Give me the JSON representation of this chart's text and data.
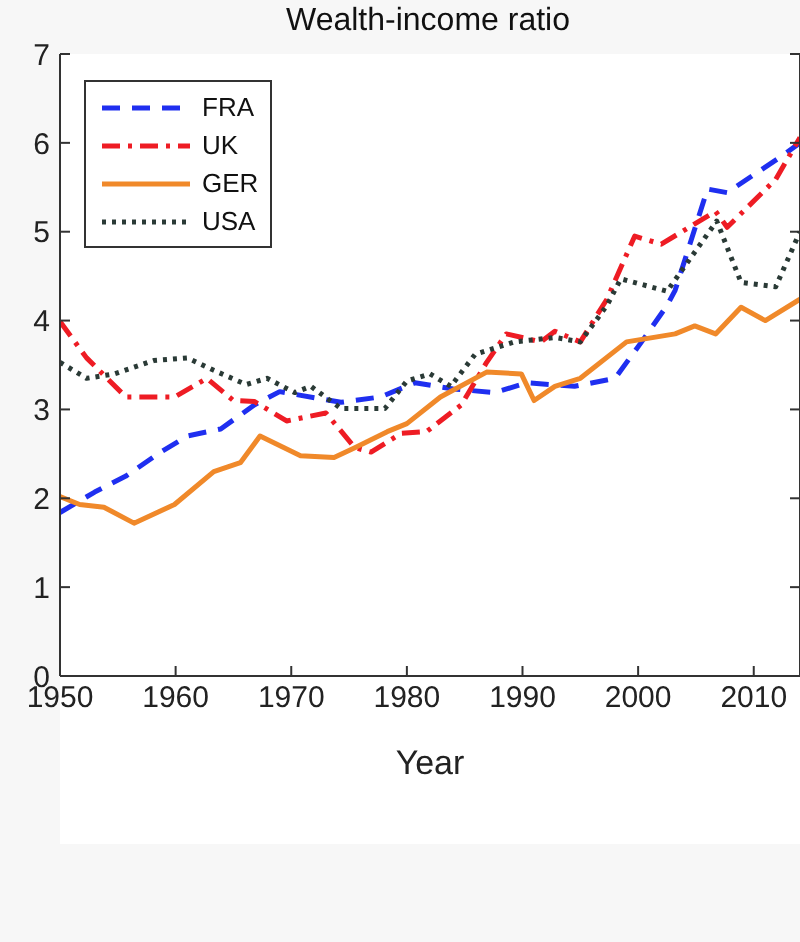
{
  "chart_data": {
    "type": "line",
    "title": "Wealth-income ratio",
    "xlabel": "Year",
    "xlim": [
      1950,
      2014
    ],
    "xticks": [
      1950,
      1960,
      1970,
      1980,
      1990,
      2000,
      2010
    ],
    "ylim": [
      0,
      7
    ],
    "yticks": [
      0,
      1,
      2,
      3,
      4,
      5,
      6,
      7
    ],
    "grid": false,
    "legend": "top left",
    "marker": "none",
    "series": [
      {
        "name": "FRA",
        "color": "#1f2ff0",
        "line_style": "dashed",
        "x": [
          1950,
          1953,
          1955.7,
          1958.7,
          1961,
          1963.9,
          1966.8,
          1969,
          1974.3,
          1977.7,
          1980.7,
          1984,
          1987.6,
          1990.4,
          1994.5,
          1998,
          2000.3,
          2002.5,
          2003.2,
          2006,
          2007.7,
          2012.4,
          2014
        ],
        "values": [
          1.84,
          2.07,
          2.25,
          2.52,
          2.7,
          2.78,
          3.05,
          3.2,
          3.08,
          3.14,
          3.3,
          3.23,
          3.19,
          3.3,
          3.26,
          3.35,
          3.76,
          4.17,
          4.34,
          5.48,
          5.44,
          5.85,
          6.0
        ]
      },
      {
        "name": "UK",
        "color": "#ee1c24",
        "line_style": "dashdot",
        "x": [
          1950,
          1952.3,
          1955.7,
          1959.9,
          1962.7,
          1965,
          1966.8,
          1969.6,
          1973,
          1975.5,
          1976.9,
          1979.5,
          1981.7,
          1984.7,
          1986.9,
          1988.6,
          1991.6,
          1992.8,
          1995,
          1997.3,
          1999.7,
          2002,
          2006.7,
          2007.7,
          2011.9,
          2014
        ],
        "values": [
          3.99,
          3.58,
          3.14,
          3.14,
          3.35,
          3.1,
          3.09,
          2.87,
          2.96,
          2.57,
          2.52,
          2.73,
          2.75,
          3.05,
          3.53,
          3.85,
          3.76,
          3.88,
          3.76,
          4.24,
          4.95,
          4.86,
          5.23,
          5.05,
          5.59,
          6.06
        ]
      },
      {
        "name": "GER",
        "color": "#f0892a",
        "line_style": "solid",
        "x": [
          1950,
          1951.7,
          1953.8,
          1956.4,
          1959.9,
          1963.3,
          1965.6,
          1967.3,
          1970.8,
          1973.7,
          1975.5,
          1978.3,
          1980,
          1982.9,
          1986.9,
          1989.9,
          1991,
          1992.8,
          1995,
          1999,
          2003.2,
          2004.9,
          2006.7,
          2008.9,
          2011,
          2014
        ],
        "values": [
          2.02,
          1.93,
          1.9,
          1.72,
          1.93,
          2.3,
          2.4,
          2.7,
          2.48,
          2.46,
          2.57,
          2.75,
          2.84,
          3.14,
          3.42,
          3.4,
          3.1,
          3.26,
          3.35,
          3.76,
          3.85,
          3.94,
          3.85,
          4.15,
          4.0,
          4.24
        ]
      },
      {
        "name": "USA",
        "color": "#2a3a36",
        "line_style": "dotted",
        "x": [
          1950,
          1952.3,
          1954.7,
          1958.1,
          1961,
          1963.3,
          1966.1,
          1967.9,
          1970.3,
          1971.7,
          1974.3,
          1978.1,
          1980,
          1982,
          1983.8,
          1985.9,
          1989.3,
          1992.8,
          1995,
          1997.3,
          1998.5,
          2002.5,
          2006.8,
          2008.9,
          2011.9,
          2014
        ],
        "values": [
          3.53,
          3.35,
          3.4,
          3.55,
          3.58,
          3.44,
          3.28,
          3.35,
          3.19,
          3.26,
          3.01,
          3.01,
          3.32,
          3.4,
          3.26,
          3.62,
          3.76,
          3.81,
          3.76,
          4.17,
          4.47,
          4.33,
          5.12,
          4.43,
          4.38,
          5.0
        ]
      }
    ]
  }
}
